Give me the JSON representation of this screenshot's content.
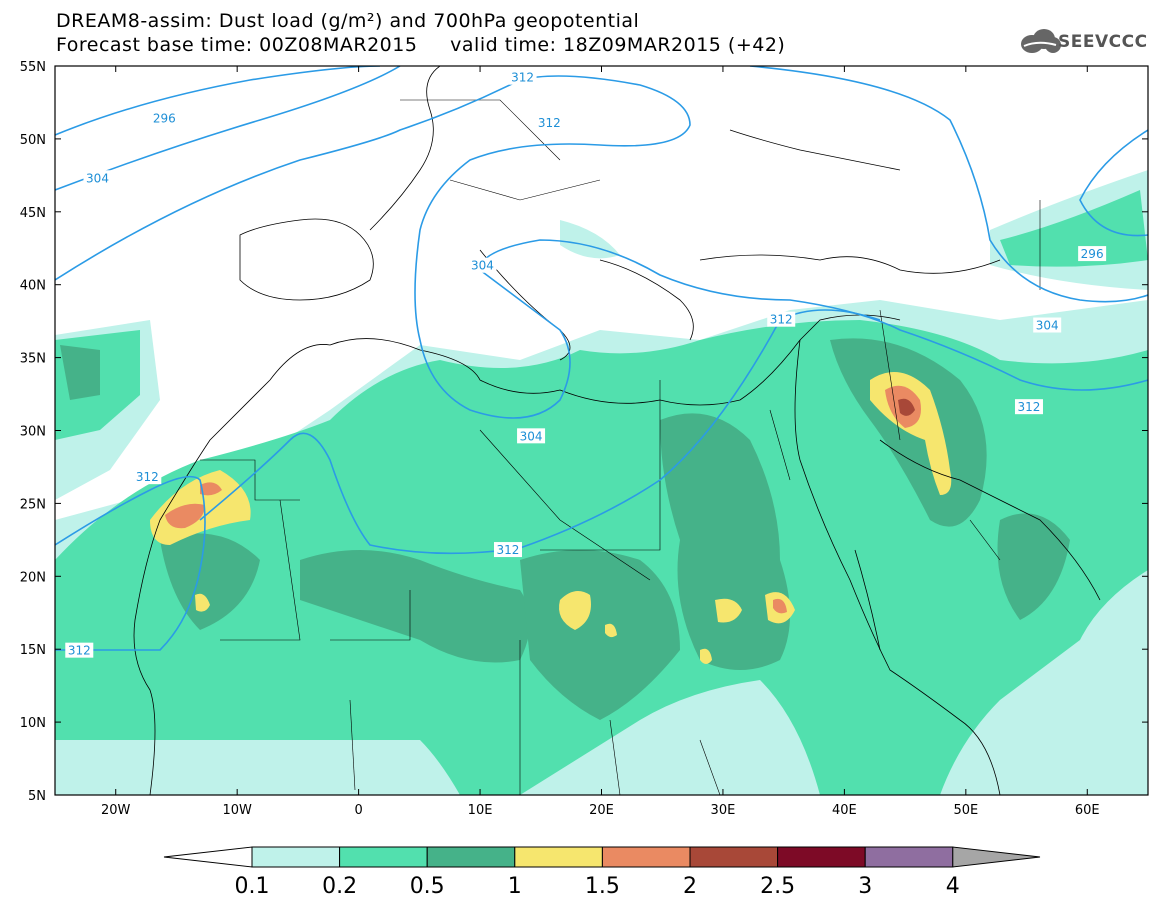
{
  "title_line1": "DREAM8-assim: Dust load (g/m²) and 700hPa geopotential",
  "title_line2": "Forecast base time: 00Z08MAR2015     valid time: 18Z09MAR2015 (+42)",
  "logo_text": "SEEVCCC",
  "map": {
    "lon_range": [
      -25,
      65
    ],
    "lat_range": [
      5,
      55
    ],
    "lat_ticks": [
      {
        "value": 55,
        "label": "55N"
      },
      {
        "value": 50,
        "label": "50N"
      },
      {
        "value": 45,
        "label": "45N"
      },
      {
        "value": 40,
        "label": "40N"
      },
      {
        "value": 35,
        "label": "35N"
      },
      {
        "value": 30,
        "label": "30N"
      },
      {
        "value": 25,
        "label": "25N"
      },
      {
        "value": 20,
        "label": "20N"
      },
      {
        "value": 15,
        "label": "15N"
      },
      {
        "value": 10,
        "label": "10N"
      },
      {
        "value": 5,
        "label": "5N"
      }
    ],
    "lon_ticks": [
      {
        "value": -20,
        "label": "20W"
      },
      {
        "value": -10,
        "label": "10W"
      },
      {
        "value": 0,
        "label": "0"
      },
      {
        "value": 10,
        "label": "10E"
      },
      {
        "value": 20,
        "label": "20E"
      },
      {
        "value": 30,
        "label": "30E"
      },
      {
        "value": 40,
        "label": "40E"
      },
      {
        "value": 50,
        "label": "50E"
      },
      {
        "value": 60,
        "label": "60E"
      }
    ],
    "contour_labels": [
      {
        "text": "296",
        "lon": -16,
        "lat": 51.4
      },
      {
        "text": "304",
        "lon": -21.5,
        "lat": 47.3
      },
      {
        "text": "312",
        "lon": 13.5,
        "lat": 54.2
      },
      {
        "text": "312",
        "lon": 15.7,
        "lat": 51.1
      },
      {
        "text": "304",
        "lon": 10.2,
        "lat": 41.3
      },
      {
        "text": "304",
        "lon": 14.2,
        "lat": 29.6
      },
      {
        "text": "312",
        "lon": 12.3,
        "lat": 21.8
      },
      {
        "text": "312",
        "lon": -17.4,
        "lat": 26.8
      },
      {
        "text": "312",
        "lon": -23,
        "lat": 14.9
      },
      {
        "text": "312",
        "lon": 34.8,
        "lat": 37.6
      },
      {
        "text": "296",
        "lon": 60.4,
        "lat": 42.1
      },
      {
        "text": "304",
        "lon": 56.7,
        "lat": 37.2
      },
      {
        "text": "312",
        "lon": 55.2,
        "lat": 31.6
      }
    ]
  },
  "colorbar": {
    "labels": [
      "0.1",
      "0.2",
      "0.5",
      "1",
      "1.5",
      "2",
      "2.5",
      "3",
      "4"
    ],
    "colors": [
      "#bff2ea",
      "#52e0ae",
      "#45b289",
      "#f6e66e",
      "#ea8a62",
      "#a84838",
      "#7d0a26",
      "#8f6ea0"
    ]
  }
}
